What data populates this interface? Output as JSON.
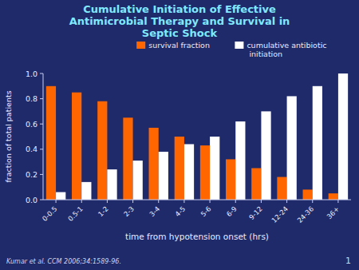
{
  "chart_data": {
    "type": "bar",
    "title": "Cumulative Initiation of Effective\nAntimicrobial Therapy and Survival in\nSeptic Shock",
    "x_label": "time from hypotension onset (hrs)",
    "y_label": "fraction of total patients",
    "categories": [
      "0-0.5",
      "0.5-1",
      "1-2",
      "2-3",
      "3-4",
      "4-5",
      "5-6",
      "6-9",
      "9-12",
      "12-24",
      "24-36",
      "36+"
    ],
    "series": [
      {
        "name": "survival fraction",
        "color": "#ff6600",
        "values": [
          0.9,
          0.85,
          0.78,
          0.65,
          0.57,
          0.5,
          0.43,
          0.32,
          0.25,
          0.18,
          0.08,
          0.05
        ]
      },
      {
        "name": "cumulative antibiotic\n  initiation",
        "color": "#ffffff",
        "values": [
          0.06,
          0.14,
          0.24,
          0.31,
          0.38,
          0.44,
          0.5,
          0.62,
          0.7,
          0.82,
          0.9,
          1.0
        ]
      }
    ],
    "ylim": [
      0,
      1.0
    ],
    "yticks": [
      {
        "value": 0.0,
        "label": "0.0"
      },
      0.2,
      0.4,
      0.6,
      0.8,
      {
        "value": 1.0,
        "label": "1.0"
      }
    ],
    "grid": false,
    "legend": "top",
    "annotations": [
      "Kumar et al. CCM 2006;34:1589-96.",
      "1"
    ]
  }
}
